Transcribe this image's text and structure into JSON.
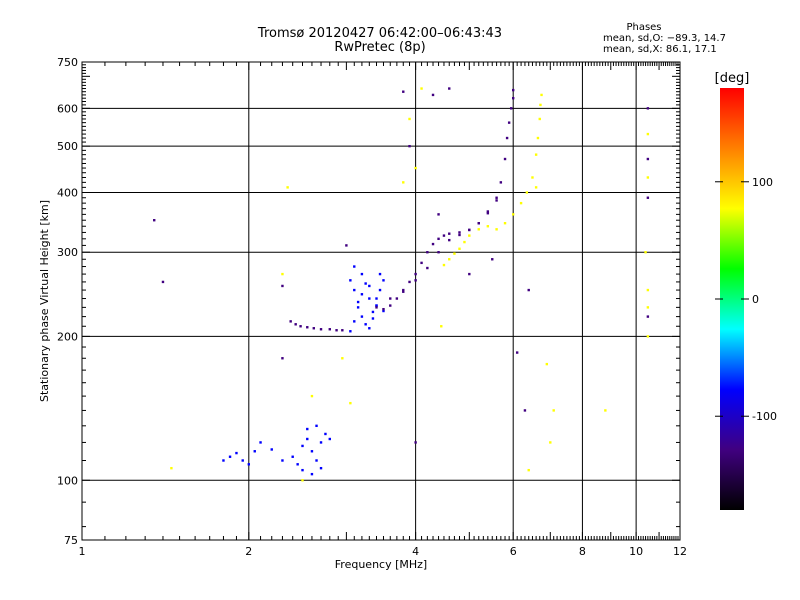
{
  "chart_data": {
    "type": "scatter",
    "title": "Tromsø 20120427 06:42:00–06:43:43",
    "subtitle": "RwPretec (8p)",
    "xlabel": "Frequency [MHz]",
    "ylabel": "Stationary phase Virtual Height [km]",
    "x_scale": "log",
    "y_scale": "log",
    "xlim": [
      1,
      12
    ],
    "ylim": [
      75,
      750
    ],
    "xticks": [
      1,
      2,
      4,
      6,
      8,
      10,
      12
    ],
    "yticks": [
      75,
      100,
      200,
      300,
      400,
      500,
      600,
      750
    ],
    "x_gridlines": [
      2,
      4,
      6,
      8,
      10
    ],
    "y_gridlines": [
      100,
      200,
      300,
      400,
      500,
      600
    ],
    "grid": true,
    "stats": {
      "title": "Phases",
      "o_line": "mean, sd,O: −89.3, 14.7",
      "x_line": "mean, sd,X:  86.1, 17.1"
    },
    "colorbar": {
      "label": "[deg]",
      "range": [
        -180,
        180
      ],
      "ticks": [
        100,
        0,
        -100
      ],
      "colors": [
        "#ff0000",
        "#ff8000",
        "#ffff00",
        "#00ff00",
        "#00ffff",
        "#0000ff",
        "#400080",
        "#000000"
      ]
    },
    "series": [
      {
        "x": [
          2.38,
          2.43,
          2.48,
          2.55,
          2.62,
          2.7,
          2.8,
          2.88,
          2.95
        ],
        "y": [
          215,
          212,
          210,
          209,
          208,
          207,
          207,
          206,
          206
        ],
        "phase": -120
      },
      {
        "x": [
          3.05,
          3.1,
          3.15,
          3.2,
          3.25,
          3.3,
          3.35,
          3.4,
          3.45,
          3.5,
          3.05,
          3.1,
          3.15,
          3.2,
          3.25,
          3.3,
          3.35,
          3.4,
          3.45,
          3.5,
          3.1,
          3.2,
          3.3,
          3.4
        ],
        "y": [
          205,
          215,
          230,
          245,
          258,
          240,
          225,
          232,
          250,
          262,
          262,
          250,
          236,
          220,
          212,
          208,
          218,
          240,
          270,
          226,
          280,
          270,
          255,
          232
        ],
        "phase": -95
      },
      {
        "x": [
          3.5,
          3.6,
          3.7,
          3.8,
          3.9,
          4.0,
          4.1,
          4.2,
          4.3,
          4.4,
          4.5,
          4.6,
          4.8,
          5.0,
          5.2,
          5.4,
          5.6
        ],
        "y": [
          228,
          232,
          240,
          248,
          260,
          270,
          285,
          300,
          312,
          320,
          325,
          328,
          330,
          334,
          345,
          365,
          390
        ],
        "phase": -105
      },
      {
        "x": [
          3.4,
          3.6,
          3.8,
          4.0,
          4.2,
          4.4,
          4.6,
          4.8,
          5.0,
          5.2,
          5.4,
          5.6,
          5.7,
          5.8,
          5.85,
          5.9,
          5.95,
          6.0,
          6.0
        ],
        "y": [
          230,
          240,
          250,
          262,
          278,
          300,
          318,
          326,
          334,
          345,
          362,
          385,
          420,
          470,
          520,
          560,
          600,
          630,
          655
        ],
        "phase": -110
      },
      {
        "x": [
          5.6,
          5.8,
          6.0,
          6.2,
          6.35,
          6.5,
          6.6,
          6.65,
          6.7,
          6.72,
          6.75
        ],
        "y": [
          335,
          345,
          360,
          380,
          400,
          430,
          480,
          520,
          570,
          610,
          640
        ],
        "phase": 95
      },
      {
        "x": [
          4.5,
          4.6,
          4.7,
          4.8,
          4.9,
          5.0,
          5.2,
          5.4
        ],
        "y": [
          282,
          290,
          298,
          305,
          315,
          325,
          335,
          340
        ],
        "phase": 100
      },
      {
        "x": [
          1.8,
          1.85,
          1.9,
          1.95,
          2.0,
          2.05,
          2.1,
          2.2,
          2.3,
          2.4,
          2.45,
          2.5,
          2.55,
          2.6,
          2.65,
          2.7,
          2.75,
          2.8,
          2.5,
          2.6,
          2.7,
          2.55,
          2.65
        ],
        "y": [
          110,
          112,
          114,
          110,
          108,
          115,
          120,
          116,
          110,
          112,
          108,
          118,
          122,
          115,
          110,
          120,
          125,
          122,
          105,
          103,
          106,
          128,
          130
        ],
        "phase": -100
      },
      {
        "x": [
          1.35,
          1.4,
          2.3,
          2.3,
          3.0,
          3.8,
          3.9,
          4.0,
          4.3,
          4.4,
          4.6,
          5.0,
          5.5,
          6.1,
          6.4,
          10.5,
          10.5,
          10.5,
          10.5,
          6.3
        ],
        "y": [
          350,
          260,
          255,
          180,
          310,
          650,
          500,
          120,
          640,
          360,
          660,
          270,
          290,
          185,
          250,
          600,
          470,
          390,
          220,
          140
        ],
        "phase": -110
      },
      {
        "x": [
          1.45,
          2.35,
          2.3,
          2.6,
          2.95,
          3.9,
          4.0,
          3.8,
          4.45,
          6.4,
          6.6,
          6.9,
          7.1,
          8.8,
          10.5,
          10.5,
          10.5,
          10.5,
          10.5,
          10.4,
          4.1,
          2.5,
          3.05,
          7.0
        ],
        "y": [
          106,
          410,
          270,
          150,
          180,
          570,
          450,
          420,
          210,
          105,
          410,
          175,
          140,
          140,
          530,
          430,
          250,
          200,
          230,
          300,
          660,
          100,
          145,
          120
        ],
        "phase": 90
      }
    ]
  }
}
